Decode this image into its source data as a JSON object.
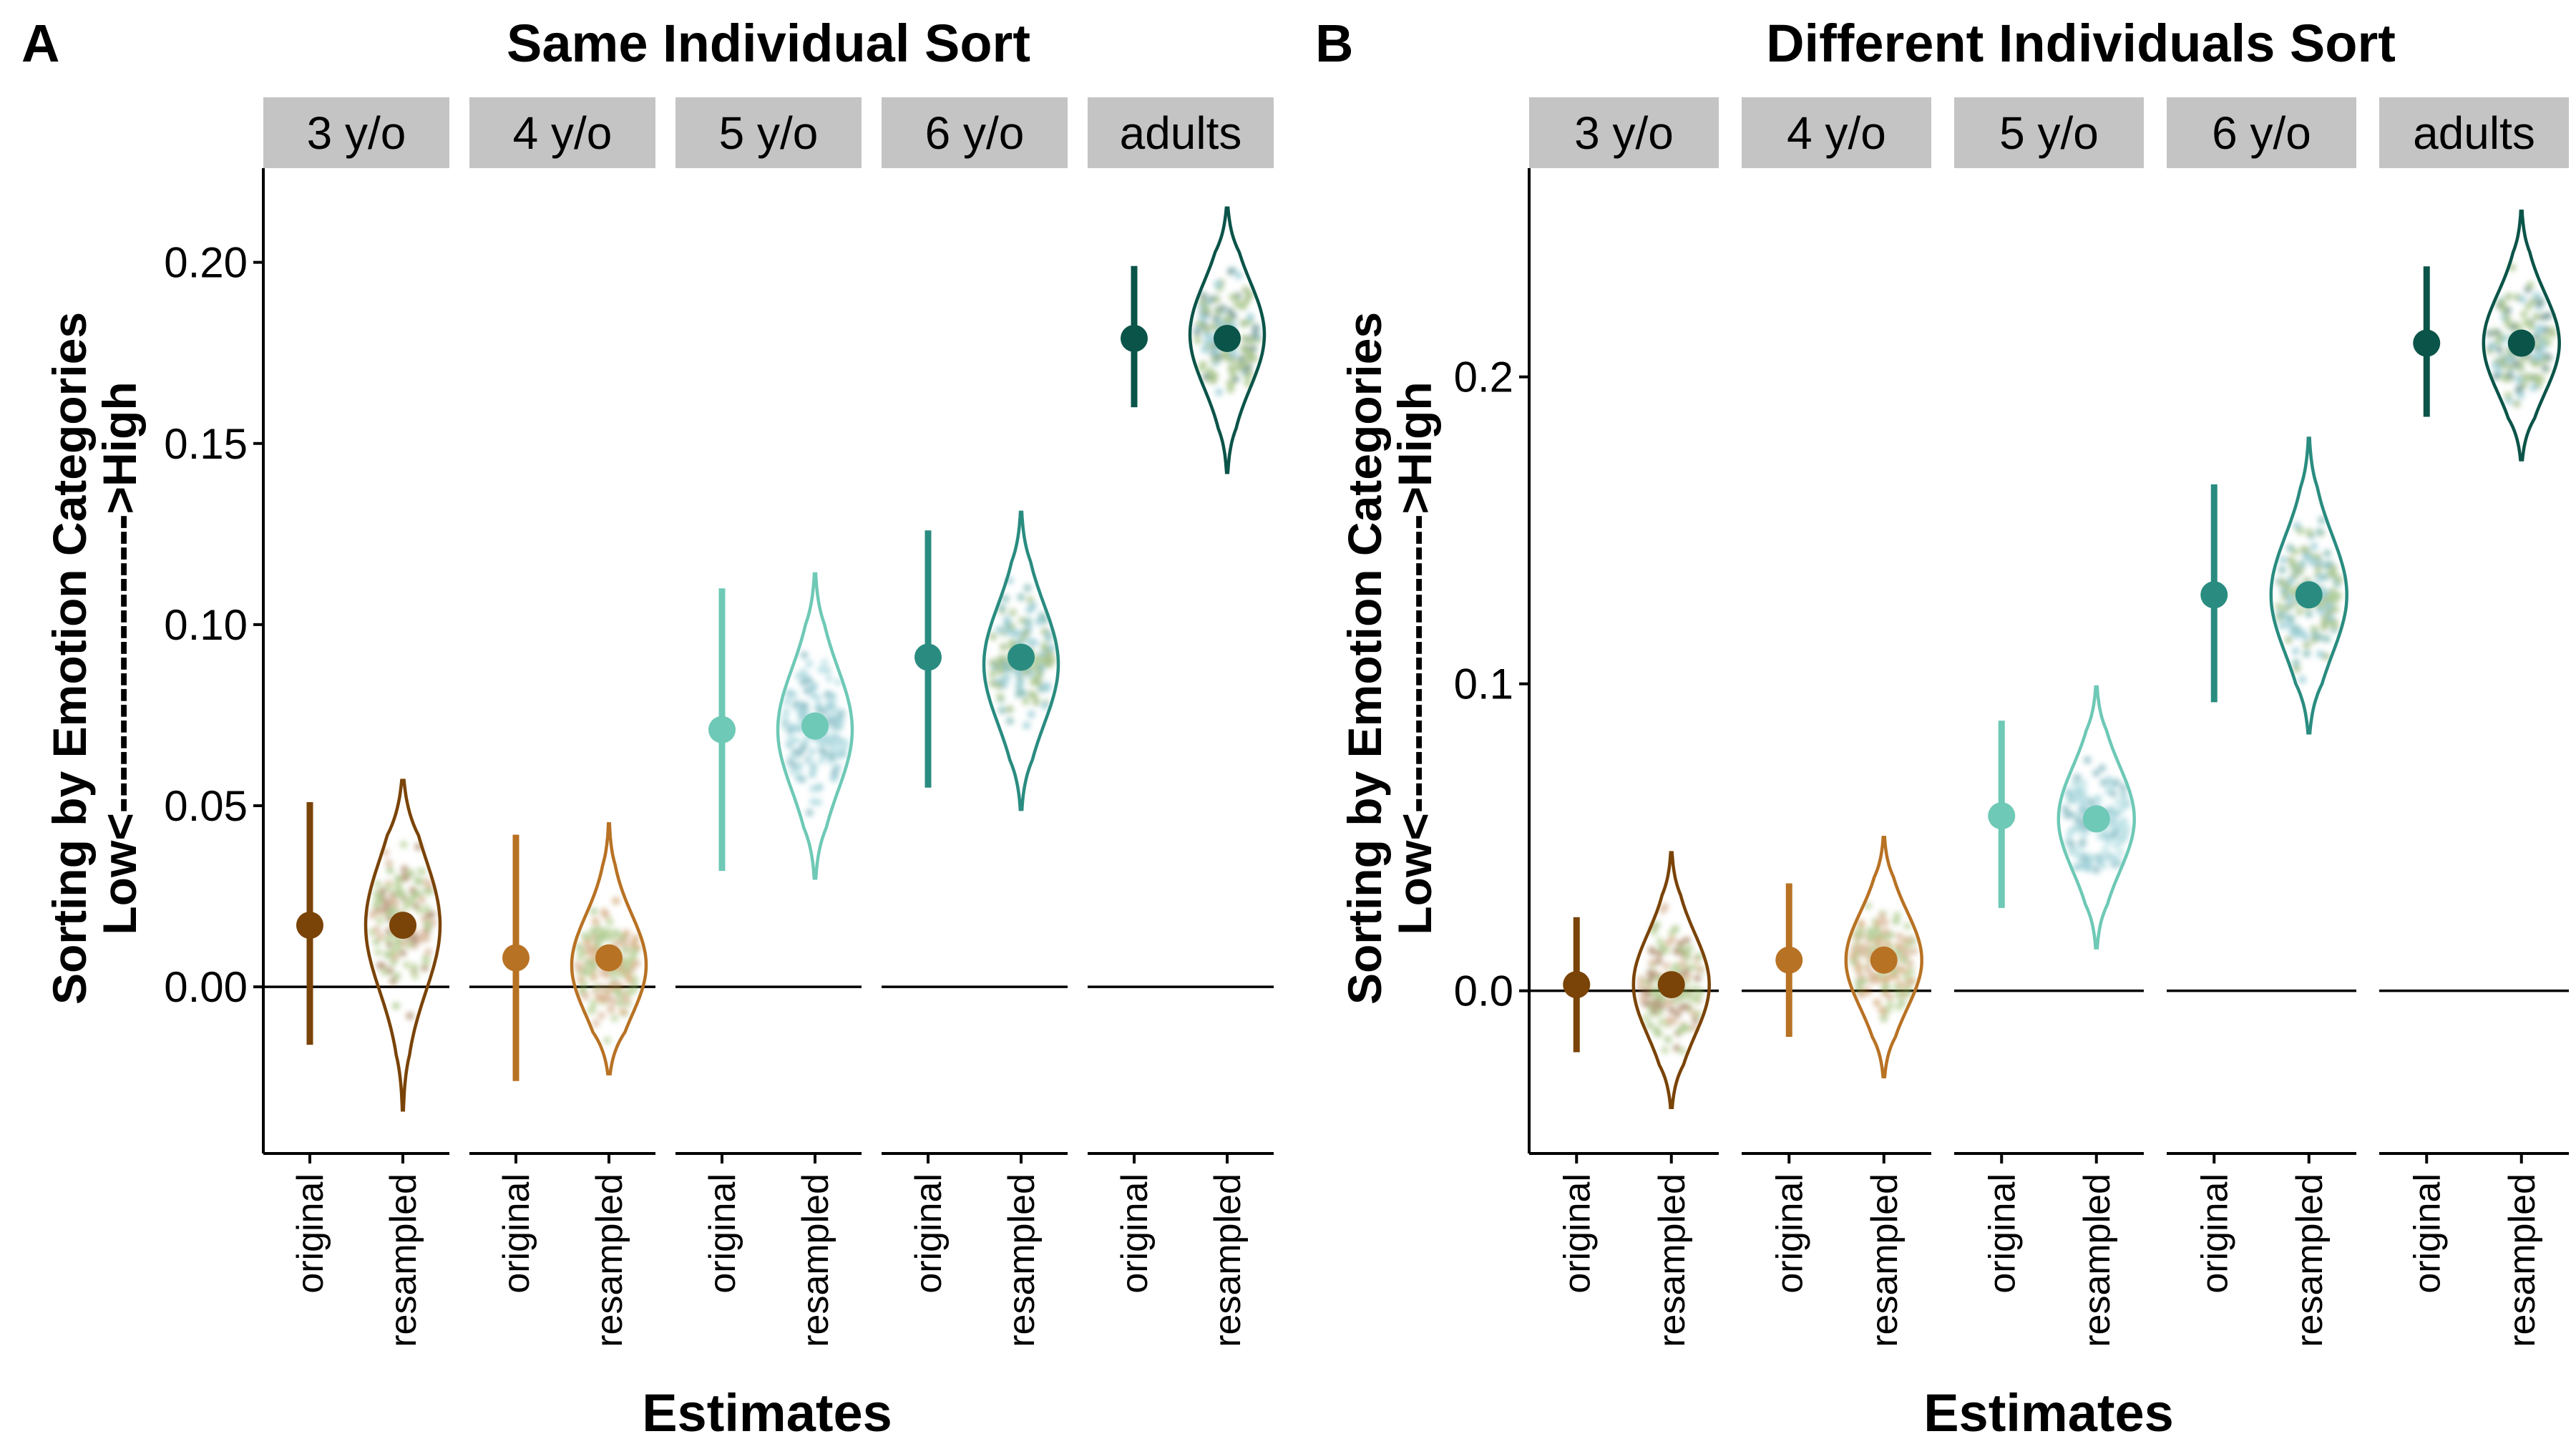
{
  "chart_data": [
    {
      "type": "violin",
      "panel_label": "A",
      "title": "Same Individual Sort",
      "xlabel": "Estimates",
      "ylabel_top": "Sorting by Emotion Categories",
      "ylabel_bottom": "Low<------------------->High",
      "ylim": [
        -0.046,
        0.226
      ],
      "yticks": [
        0.0,
        0.05,
        0.1,
        0.15,
        0.2
      ],
      "ytick_labels": [
        "0.00",
        "0.05",
        "0.10",
        "0.15",
        "0.20"
      ],
      "reference_line": 0,
      "x_categories": [
        "original",
        "resampled"
      ],
      "facets": [
        {
          "label": "3 y/o",
          "color": "#7a4307",
          "original": {
            "mean": 0.017,
            "lo": -0.016,
            "hi": 0.051
          },
          "resampled": {
            "mean": 0.017,
            "min": -0.034,
            "max": 0.057,
            "peak": 0.017
          }
        },
        {
          "label": "4 y/o",
          "color": "#b87224",
          "original": {
            "mean": 0.008,
            "lo": -0.026,
            "hi": 0.042
          },
          "resampled": {
            "mean": 0.008,
            "min": -0.024,
            "max": 0.045,
            "peak": 0.006
          }
        },
        {
          "label": "5 y/o",
          "color": "#6ec9b6",
          "original": {
            "mean": 0.071,
            "lo": 0.032,
            "hi": 0.11
          },
          "resampled": {
            "mean": 0.072,
            "min": 0.03,
            "max": 0.114,
            "peak": 0.071
          }
        },
        {
          "label": "6 y/o",
          "color": "#2a8c80",
          "original": {
            "mean": 0.091,
            "lo": 0.055,
            "hi": 0.126
          },
          "resampled": {
            "mean": 0.091,
            "min": 0.049,
            "max": 0.131,
            "peak": 0.089
          }
        },
        {
          "label": "adults",
          "color": "#0b5449",
          "original": {
            "mean": 0.179,
            "lo": 0.16,
            "hi": 0.199
          },
          "resampled": {
            "mean": 0.179,
            "min": 0.142,
            "max": 0.215,
            "peak": 0.18
          }
        }
      ]
    },
    {
      "type": "violin",
      "panel_label": "B",
      "title": "Different Individuals Sort",
      "xlabel": "Estimates",
      "ylabel_top": "Sorting by Emotion Categories",
      "ylabel_bottom": "Low<------------------->High",
      "ylim": [
        -0.053,
        0.268
      ],
      "yticks": [
        0.0,
        0.1,
        0.2
      ],
      "ytick_labels": [
        "0.0",
        "0.1",
        "0.2"
      ],
      "reference_line": 0,
      "x_categories": [
        "original",
        "resampled"
      ],
      "facets": [
        {
          "label": "3 y/o",
          "color": "#7a4307",
          "original": {
            "mean": 0.002,
            "lo": -0.02,
            "hi": 0.024
          },
          "resampled": {
            "mean": 0.002,
            "min": -0.038,
            "max": 0.045,
            "peak": 0.002
          }
        },
        {
          "label": "4 y/o",
          "color": "#b87224",
          "original": {
            "mean": 0.01,
            "lo": -0.015,
            "hi": 0.035
          },
          "resampled": {
            "mean": 0.01,
            "min": -0.028,
            "max": 0.05,
            "peak": 0.01
          }
        },
        {
          "label": "5 y/o",
          "color": "#6ec9b6",
          "original": {
            "mean": 0.057,
            "lo": 0.027,
            "hi": 0.088
          },
          "resampled": {
            "mean": 0.056,
            "min": 0.014,
            "max": 0.099,
            "peak": 0.056
          }
        },
        {
          "label": "6 y/o",
          "color": "#2a8c80",
          "original": {
            "mean": 0.129,
            "lo": 0.094,
            "hi": 0.165
          },
          "resampled": {
            "mean": 0.129,
            "min": 0.084,
            "max": 0.18,
            "peak": 0.129
          }
        },
        {
          "label": "adults",
          "color": "#0b5449",
          "original": {
            "mean": 0.211,
            "lo": 0.187,
            "hi": 0.236
          },
          "resampled": {
            "mean": 0.211,
            "min": 0.173,
            "max": 0.254,
            "peak": 0.211
          }
        }
      ]
    }
  ]
}
